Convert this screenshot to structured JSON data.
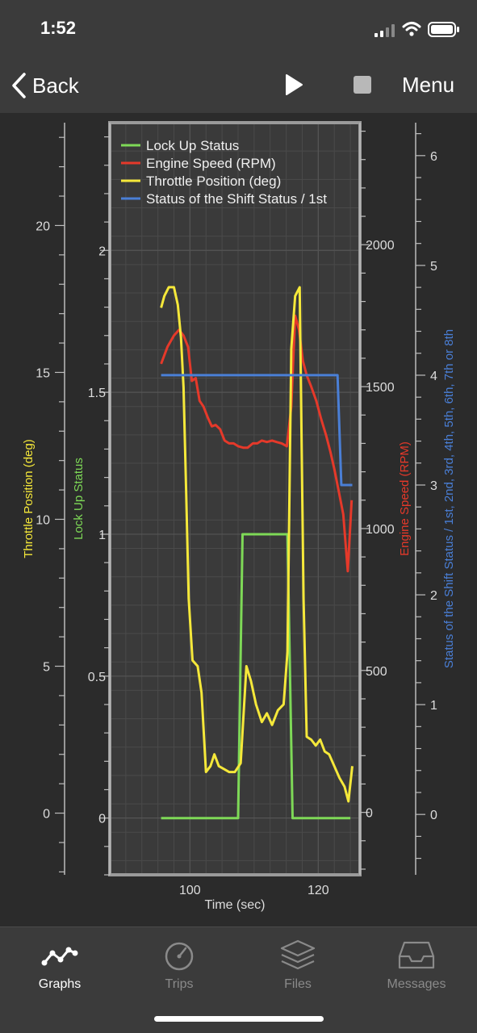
{
  "status_bar": {
    "time": "1:52"
  },
  "nav": {
    "back_label": "Back",
    "menu_label": "Menu"
  },
  "tabs": [
    {
      "label": "Graphs",
      "icon": "graphs-icon",
      "active": true
    },
    {
      "label": "Trips",
      "icon": "trips-icon",
      "active": false
    },
    {
      "label": "Files",
      "icon": "files-icon",
      "active": false
    },
    {
      "label": "Messages",
      "icon": "messages-icon",
      "active": false
    }
  ],
  "colors": {
    "lock_up": "#7ed957",
    "engine_speed": "#e5392a",
    "throttle": "#f5e83a",
    "shift_status": "#4a7fd6",
    "plot_bg": "#3a3a3a",
    "grid": "#555555",
    "frame": "#9a9a9a"
  },
  "chart_data": {
    "type": "line",
    "xlabel": "Time (sec)",
    "x_ticks": [
      "100",
      "120"
    ],
    "grid": true,
    "legend_position": "top-left",
    "axes": {
      "throttle": {
        "label": "Throttle Position (deg)",
        "ticks": [
          "0",
          "5",
          "10",
          "15",
          "20"
        ],
        "ylim": [
          -2.1,
          23.5
        ]
      },
      "lock_up": {
        "label": "Lock Up Status",
        "ticks": [
          "0",
          "0.5",
          "1",
          "1.5",
          "2"
        ],
        "ylim": [
          -0.2,
          2.45
        ]
      },
      "engine_speed": {
        "label": "Engine Speed (RPM)",
        "ticks": [
          "0",
          "500",
          "1000",
          "1500",
          "2000"
        ],
        "ylim": [
          -220,
          2430
        ]
      },
      "shift_status": {
        "label": "Status of the Shift Status / 1st, 2nd, 3rd, 4th, 5th, 6th, 7th or 8th",
        "ticks": [
          "0",
          "1",
          "2",
          "3",
          "4",
          "5",
          "6"
        ],
        "ylim": [
          -0.55,
          6.3
        ]
      }
    },
    "series": [
      {
        "name": "Lock Up Status",
        "axis": "lock_up",
        "x": [
          95.5,
          107.5,
          108.2,
          115.2,
          116.0,
          125.0
        ],
        "y": [
          0,
          0,
          1,
          1,
          0,
          0
        ]
      },
      {
        "name": "Engine Speed (RPM)",
        "axis": "engine_speed",
        "x": [
          95.5,
          96.5,
          97.5,
          98.3,
          99.0,
          99.7,
          100.3,
          100.9,
          101.5,
          102.1,
          102.8,
          103.4,
          104.0,
          104.7,
          105.4,
          106.1,
          106.8,
          107.5,
          108.3,
          109.0,
          109.8,
          110.5,
          111.2,
          112.0,
          112.8,
          113.5,
          114.3,
          115.1,
          115.8,
          116.4,
          117.0,
          117.6,
          118.2,
          118.9,
          119.7,
          120.4,
          121.2,
          121.9,
          122.5,
          123.2,
          123.9,
          124.6,
          125.2
        ],
        "y": [
          1580,
          1640,
          1680,
          1700,
          1680,
          1640,
          1520,
          1530,
          1450,
          1430,
          1390,
          1360,
          1365,
          1350,
          1310,
          1300,
          1300,
          1290,
          1285,
          1285,
          1300,
          1300,
          1310,
          1305,
          1310,
          1305,
          1300,
          1290,
          1430,
          1750,
          1700,
          1590,
          1540,
          1500,
          1450,
          1390,
          1330,
          1270,
          1210,
          1130,
          1050,
          850,
          1100
        ]
      },
      {
        "name": "Throttle Position (deg)",
        "axis": "throttle",
        "x": [
          95.5,
          96.0,
          96.7,
          97.5,
          98.1,
          98.6,
          99.0,
          99.4,
          99.8,
          100.4,
          101.2,
          101.8,
          102.5,
          103.2,
          103.8,
          104.5,
          105.3,
          106.1,
          107.0,
          107.9,
          108.8,
          109.5,
          110.3,
          111.2,
          112.0,
          112.8,
          113.7,
          114.6,
          115.2,
          115.8,
          116.4,
          117.1,
          117.7,
          118.2,
          118.9,
          119.6,
          120.3,
          121.0,
          121.7,
          122.5,
          123.3,
          124.1,
          124.7,
          125.3
        ],
        "y": [
          17.2,
          17.6,
          17.9,
          17.9,
          17.3,
          16.2,
          14.5,
          11.0,
          7.3,
          5.2,
          5.0,
          4.1,
          1.4,
          1.6,
          2.0,
          1.6,
          1.5,
          1.4,
          1.4,
          1.7,
          5.0,
          4.5,
          3.7,
          3.1,
          3.4,
          3.0,
          3.5,
          3.7,
          5.5,
          15.8,
          17.6,
          17.9,
          7.3,
          2.6,
          2.5,
          2.3,
          2.5,
          2.1,
          2.0,
          1.6,
          1.2,
          0.9,
          0.4,
          1.6
        ]
      },
      {
        "name": "Status of the Shift Status / 1st",
        "axis": "shift_status",
        "x": [
          95.5,
          123.0,
          123.6,
          125.3
        ],
        "y": [
          4,
          4,
          3,
          3
        ]
      }
    ]
  }
}
